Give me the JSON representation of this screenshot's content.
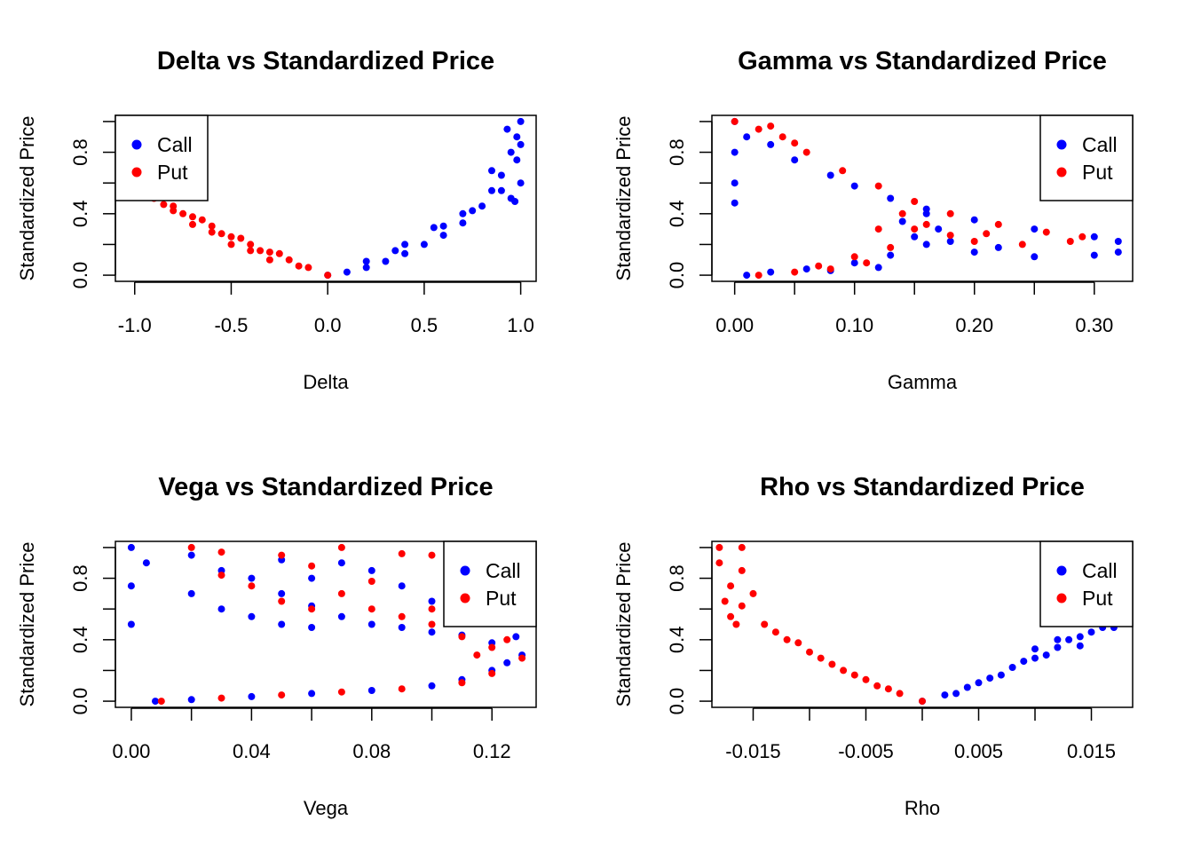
{
  "figure": {
    "background": "#ffffff"
  },
  "legend_entries": [
    {
      "label": "Call",
      "color": "#0000ff"
    },
    {
      "label": "Put",
      "color": "#ff0000"
    }
  ],
  "chart_data": [
    {
      "type": "scatter",
      "title": "Delta vs Standardized Price",
      "xlabel": "Delta",
      "ylabel": "Standardized Price",
      "xlim": [
        -1.1,
        1.08
      ],
      "ylim": [
        -0.04,
        1.04
      ],
      "xticks": [
        -1.0,
        -0.5,
        0.0,
        0.5,
        1.0
      ],
      "xtick_labels": [
        "-1.0",
        "-0.5",
        "0.0",
        "0.5",
        "1.0"
      ],
      "yticks": [
        0.0,
        0.2,
        0.4,
        0.6,
        0.8,
        1.0
      ],
      "ytick_labels": [
        "0.0",
        "",
        "0.4",
        "",
        "0.8",
        ""
      ],
      "legend_position": "top-left",
      "series": [
        {
          "name": "Call",
          "color": "#0000ff",
          "points": [
            [
              0.0,
              0.0
            ],
            [
              0.1,
              0.02
            ],
            [
              0.2,
              0.05
            ],
            [
              0.3,
              0.09
            ],
            [
              0.4,
              0.14
            ],
            [
              0.5,
              0.2
            ],
            [
              0.6,
              0.26
            ],
            [
              0.7,
              0.34
            ],
            [
              0.8,
              0.45
            ],
            [
              0.85,
              0.55
            ],
            [
              0.9,
              0.65
            ],
            [
              0.95,
              0.8
            ],
            [
              0.98,
              0.9
            ],
            [
              1.0,
              1.0
            ],
            [
              0.95,
              0.5
            ],
            [
              0.9,
              0.55
            ],
            [
              1.0,
              0.6
            ],
            [
              0.98,
              0.75
            ],
            [
              0.93,
              0.95
            ],
            [
              0.2,
              0.09
            ],
            [
              0.4,
              0.2
            ],
            [
              0.6,
              0.32
            ],
            [
              0.75,
              0.42
            ],
            [
              0.85,
              0.68
            ],
            [
              1.0,
              0.85
            ],
            [
              0.97,
              0.48
            ],
            [
              0.55,
              0.31
            ],
            [
              0.7,
              0.4
            ],
            [
              0.35,
              0.16
            ]
          ]
        },
        {
          "name": "Put",
          "color": "#ff0000",
          "points": [
            [
              0.0,
              0.0
            ],
            [
              -0.1,
              0.05
            ],
            [
              -0.2,
              0.1
            ],
            [
              -0.3,
              0.15
            ],
            [
              -0.4,
              0.2
            ],
            [
              -0.5,
              0.25
            ],
            [
              -0.6,
              0.32
            ],
            [
              -0.7,
              0.38
            ],
            [
              -0.8,
              0.45
            ],
            [
              -0.9,
              0.5
            ],
            [
              -0.15,
              0.06
            ],
            [
              -0.25,
              0.14
            ],
            [
              -0.35,
              0.16
            ],
            [
              -0.45,
              0.24
            ],
            [
              -0.55,
              0.27
            ],
            [
              -0.65,
              0.36
            ],
            [
              -0.75,
              0.4
            ],
            [
              -0.85,
              0.46
            ],
            [
              -0.3,
              0.1
            ],
            [
              -0.5,
              0.2
            ],
            [
              -0.7,
              0.33
            ],
            [
              -0.6,
              0.28
            ],
            [
              -0.4,
              0.16
            ],
            [
              -0.8,
              0.42
            ]
          ]
        }
      ]
    },
    {
      "type": "scatter",
      "title": "Gamma vs Standardized Price",
      "xlabel": "Gamma",
      "ylabel": "Standardized Price",
      "xlim": [
        -0.019,
        0.332
      ],
      "ylim": [
        -0.04,
        1.04
      ],
      "xticks": [
        0.0,
        0.05,
        0.1,
        0.15,
        0.2,
        0.25,
        0.3
      ],
      "xtick_labels": [
        "0.00",
        "",
        "0.10",
        "",
        "0.20",
        "",
        "0.30"
      ],
      "yticks": [
        0.0,
        0.2,
        0.4,
        0.6,
        0.8,
        1.0
      ],
      "ytick_labels": [
        "0.0",
        "",
        "0.4",
        "",
        "0.8",
        ""
      ],
      "legend_position": "top-right",
      "series": [
        {
          "name": "Call",
          "color": "#0000ff",
          "points": [
            [
              0.0,
              1.0
            ],
            [
              0.0,
              0.8
            ],
            [
              0.0,
              0.6
            ],
            [
              0.0,
              0.47
            ],
            [
              0.01,
              0.9
            ],
            [
              0.03,
              0.85
            ],
            [
              0.05,
              0.75
            ],
            [
              0.08,
              0.65
            ],
            [
              0.1,
              0.58
            ],
            [
              0.13,
              0.5
            ],
            [
              0.16,
              0.43
            ],
            [
              0.2,
              0.36
            ],
            [
              0.25,
              0.3
            ],
            [
              0.3,
              0.25
            ],
            [
              0.32,
              0.22
            ],
            [
              0.01,
              0.0
            ],
            [
              0.03,
              0.02
            ],
            [
              0.06,
              0.04
            ],
            [
              0.1,
              0.08
            ],
            [
              0.13,
              0.13
            ],
            [
              0.16,
              0.2
            ],
            [
              0.17,
              0.3
            ],
            [
              0.16,
              0.4
            ],
            [
              0.15,
              0.25
            ],
            [
              0.2,
              0.15
            ],
            [
              0.25,
              0.12
            ],
            [
              0.3,
              0.13
            ],
            [
              0.32,
              0.15
            ],
            [
              0.12,
              0.05
            ],
            [
              0.08,
              0.03
            ],
            [
              0.18,
              0.22
            ],
            [
              0.22,
              0.18
            ],
            [
              0.14,
              0.35
            ]
          ]
        },
        {
          "name": "Put",
          "color": "#ff0000",
          "points": [
            [
              0.0,
              1.0
            ],
            [
              0.02,
              0.95
            ],
            [
              0.04,
              0.9
            ],
            [
              0.06,
              0.8
            ],
            [
              0.09,
              0.68
            ],
            [
              0.12,
              0.58
            ],
            [
              0.15,
              0.48
            ],
            [
              0.18,
              0.4
            ],
            [
              0.22,
              0.33
            ],
            [
              0.26,
              0.28
            ],
            [
              0.29,
              0.25
            ],
            [
              0.02,
              0.0
            ],
            [
              0.05,
              0.02
            ],
            [
              0.08,
              0.04
            ],
            [
              0.11,
              0.08
            ],
            [
              0.13,
              0.18
            ],
            [
              0.12,
              0.3
            ],
            [
              0.14,
              0.4
            ],
            [
              0.15,
              0.3
            ],
            [
              0.2,
              0.22
            ],
            [
              0.24,
              0.2
            ],
            [
              0.28,
              0.22
            ],
            [
              0.1,
              0.12
            ],
            [
              0.18,
              0.26
            ],
            [
              0.07,
              0.06
            ],
            [
              0.03,
              0.97
            ],
            [
              0.05,
              0.86
            ],
            [
              0.16,
              0.33
            ],
            [
              0.21,
              0.27
            ]
          ]
        }
      ]
    },
    {
      "type": "scatter",
      "title": "Vega vs Standardized Price",
      "xlabel": "Vega",
      "ylabel": "Standardized Price",
      "xlim": [
        -0.0053,
        0.1347
      ],
      "ylim": [
        -0.04,
        1.04
      ],
      "xticks": [
        0.0,
        0.02,
        0.04,
        0.06,
        0.08,
        0.1,
        0.12
      ],
      "xtick_labels": [
        "0.00",
        "",
        "0.04",
        "",
        "0.08",
        "",
        "0.12"
      ],
      "yticks": [
        0.0,
        0.2,
        0.4,
        0.6,
        0.8,
        1.0
      ],
      "ytick_labels": [
        "0.0",
        "",
        "0.4",
        "",
        "0.8",
        ""
      ],
      "legend_position": "top-right",
      "series": [
        {
          "name": "Call",
          "color": "#0000ff",
          "points": [
            [
              0.0,
              1.0
            ],
            [
              0.0,
              0.75
            ],
            [
              0.0,
              0.5
            ],
            [
              0.005,
              0.9
            ],
            [
              0.008,
              0.0
            ],
            [
              0.02,
              0.01
            ],
            [
              0.04,
              0.03
            ],
            [
              0.06,
              0.05
            ],
            [
              0.08,
              0.07
            ],
            [
              0.1,
              0.1
            ],
            [
              0.11,
              0.14
            ],
            [
              0.12,
              0.2
            ],
            [
              0.13,
              0.3
            ],
            [
              0.128,
              0.42
            ],
            [
              0.02,
              0.95
            ],
            [
              0.03,
              0.85
            ],
            [
              0.04,
              0.8
            ],
            [
              0.05,
              0.7
            ],
            [
              0.06,
              0.62
            ],
            [
              0.07,
              0.55
            ],
            [
              0.08,
              0.5
            ],
            [
              0.09,
              0.48
            ],
            [
              0.1,
              0.45
            ],
            [
              0.11,
              0.43
            ],
            [
              0.02,
              0.7
            ],
            [
              0.03,
              0.6
            ],
            [
              0.04,
              0.55
            ],
            [
              0.05,
              0.5
            ],
            [
              0.06,
              0.48
            ],
            [
              0.07,
              0.9
            ],
            [
              0.08,
              0.85
            ],
            [
              0.09,
              0.75
            ],
            [
              0.1,
              0.65
            ],
            [
              0.05,
              0.92
            ],
            [
              0.06,
              0.8
            ],
            [
              0.12,
              0.38
            ],
            [
              0.125,
              0.25
            ]
          ]
        },
        {
          "name": "Put",
          "color": "#ff0000",
          "points": [
            [
              0.02,
              1.0
            ],
            [
              0.03,
              0.97
            ],
            [
              0.05,
              0.95
            ],
            [
              0.07,
              1.0
            ],
            [
              0.09,
              0.96
            ],
            [
              0.1,
              0.95
            ],
            [
              0.01,
              0.0
            ],
            [
              0.03,
              0.02
            ],
            [
              0.05,
              0.04
            ],
            [
              0.07,
              0.06
            ],
            [
              0.09,
              0.08
            ],
            [
              0.11,
              0.12
            ],
            [
              0.12,
              0.18
            ],
            [
              0.13,
              0.28
            ],
            [
              0.125,
              0.4
            ],
            [
              0.04,
              0.75
            ],
            [
              0.05,
              0.65
            ],
            [
              0.06,
              0.6
            ],
            [
              0.07,
              0.7
            ],
            [
              0.08,
              0.6
            ],
            [
              0.09,
              0.55
            ],
            [
              0.1,
              0.5
            ],
            [
              0.11,
              0.42
            ],
            [
              0.06,
              0.88
            ],
            [
              0.08,
              0.78
            ],
            [
              0.03,
              0.82
            ],
            [
              0.1,
              0.6
            ],
            [
              0.12,
              0.35
            ],
            [
              0.115,
              0.3
            ]
          ]
        }
      ]
    },
    {
      "type": "scatter",
      "title": "Rho vs Standardized Price",
      "xlabel": "Rho",
      "ylabel": "Standardized Price",
      "xlim": [
        -0.01866,
        0.01866
      ],
      "ylim": [
        -0.04,
        1.04
      ],
      "xticks": [
        -0.015,
        -0.01,
        -0.005,
        0.0,
        0.005,
        0.01,
        0.015
      ],
      "xtick_labels": [
        "-0.015",
        "",
        "-0.005",
        "",
        "0.005",
        "",
        "0.015"
      ],
      "yticks": [
        0.0,
        0.2,
        0.4,
        0.6,
        0.8,
        1.0
      ],
      "ytick_labels": [
        "0.0",
        "",
        "0.4",
        "",
        "0.8",
        ""
      ],
      "legend_position": "top-right",
      "series": [
        {
          "name": "Call",
          "color": "#0000ff",
          "points": [
            [
              0.0,
              0.0
            ],
            [
              0.002,
              0.04
            ],
            [
              0.004,
              0.09
            ],
            [
              0.006,
              0.15
            ],
            [
              0.008,
              0.22
            ],
            [
              0.01,
              0.28
            ],
            [
              0.012,
              0.35
            ],
            [
              0.014,
              0.42
            ],
            [
              0.016,
              0.48
            ],
            [
              0.017,
              0.48
            ],
            [
              0.003,
              0.05
            ],
            [
              0.005,
              0.12
            ],
            [
              0.007,
              0.17
            ],
            [
              0.009,
              0.26
            ],
            [
              0.011,
              0.3
            ],
            [
              0.013,
              0.4
            ],
            [
              0.015,
              0.45
            ],
            [
              0.01,
              0.34
            ],
            [
              0.012,
              0.4
            ],
            [
              0.014,
              0.36
            ]
          ]
        },
        {
          "name": "Put",
          "color": "#ff0000",
          "points": [
            [
              0.0,
              0.0
            ],
            [
              -0.002,
              0.05
            ],
            [
              -0.004,
              0.1
            ],
            [
              -0.006,
              0.17
            ],
            [
              -0.008,
              0.24
            ],
            [
              -0.01,
              0.32
            ],
            [
              -0.012,
              0.4
            ],
            [
              -0.014,
              0.5
            ],
            [
              -0.016,
              0.62
            ],
            [
              -0.017,
              0.75
            ],
            [
              -0.018,
              0.9
            ],
            [
              -0.018,
              1.0
            ],
            [
              -0.016,
              0.85
            ],
            [
              -0.017,
              0.55
            ],
            [
              -0.015,
              0.7
            ],
            [
              -0.013,
              0.45
            ],
            [
              -0.011,
              0.38
            ],
            [
              -0.009,
              0.28
            ],
            [
              -0.007,
              0.2
            ],
            [
              -0.005,
              0.14
            ],
            [
              -0.003,
              0.08
            ],
            [
              -0.016,
              1.0
            ],
            [
              -0.0175,
              0.65
            ],
            [
              -0.0165,
              0.5
            ]
          ]
        }
      ]
    }
  ]
}
